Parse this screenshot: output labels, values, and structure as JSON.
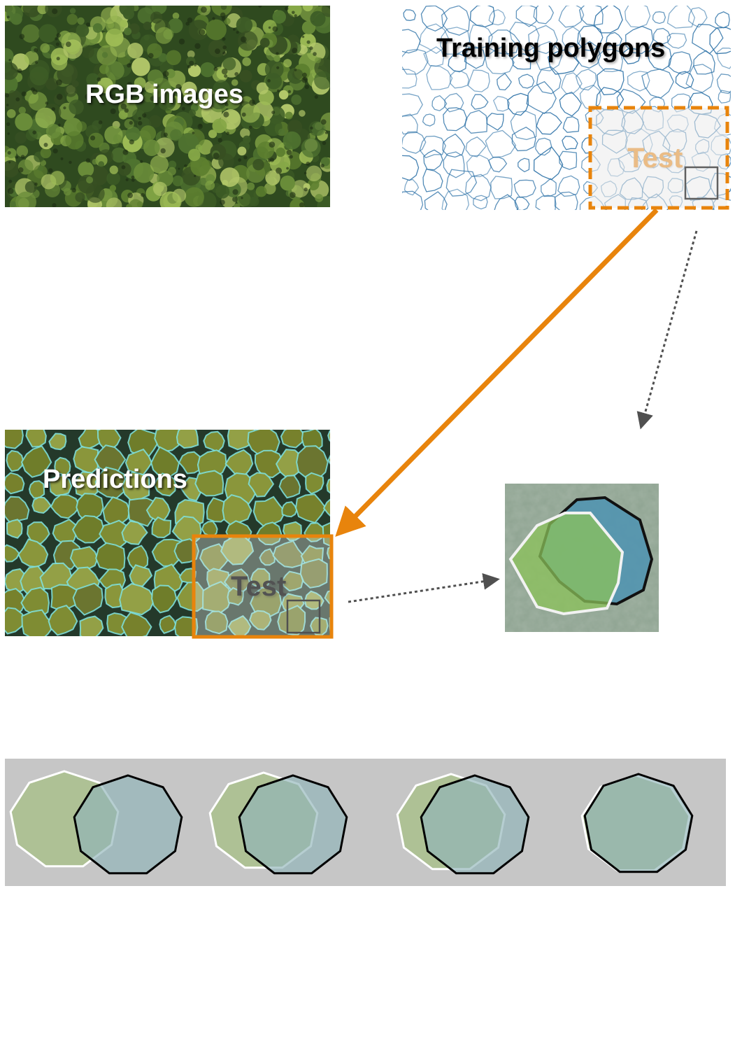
{
  "labels": {
    "rgb_images": "RGB images",
    "training_polygons": "Training polygons",
    "test_top": "Test",
    "predictions": "Predictions",
    "test_bottom": "Test"
  },
  "colors": {
    "orange": "#e8840c",
    "polygon_blue": "#2f73a8",
    "prediction_cyan": "#7fe3e0",
    "forest_dark": "#2f4a1f",
    "forest_light": "#9dbb55",
    "truth_fill": "#4e93b2",
    "pred_fill": "#8bc25a",
    "strip_bg": "#c6c6c6"
  },
  "icons": {
    "flow_arrow": "orange-arrow-icon",
    "dotted_arrow": "dotted-arrow-icon"
  }
}
